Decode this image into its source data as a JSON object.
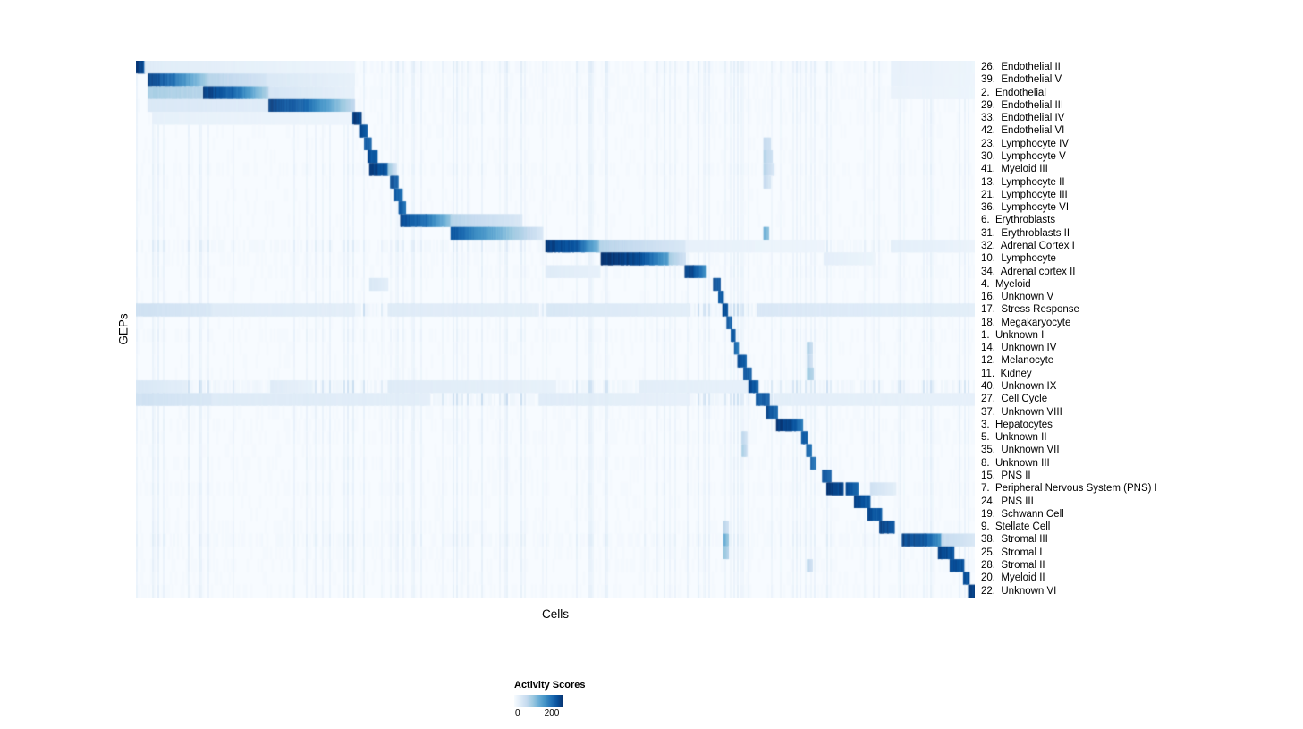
{
  "chart_data": {
    "type": "heatmap",
    "title": "",
    "xlabel": "Cells",
    "ylabel": "GEPs",
    "colorbar": {
      "title": "Activity Scores",
      "min": 0,
      "max": 200
    },
    "colormap_stops": [
      [
        0.0,
        247,
        251,
        255
      ],
      [
        0.125,
        222,
        235,
        247
      ],
      [
        0.25,
        198,
        219,
        239
      ],
      [
        0.375,
        158,
        202,
        225
      ],
      [
        0.5,
        107,
        174,
        214
      ],
      [
        0.625,
        66,
        146,
        198
      ],
      [
        0.75,
        33,
        113,
        181
      ],
      [
        0.875,
        8,
        81,
        156
      ],
      [
        1.0,
        8,
        48,
        107
      ]
    ],
    "rows": [
      {
        "label": "26.  Endothelial II",
        "noise": 0.07,
        "blocks": [
          [
            0.0,
            0.01,
            1.0,
            0.85
          ],
          [
            0.01,
            0.26,
            0.12,
            0.05
          ],
          [
            0.9,
            1.0,
            0.08,
            0.05
          ]
        ]
      },
      {
        "label": "39.  Endothelial V",
        "noise": 0.05,
        "blocks": [
          [
            0.014,
            0.045,
            0.95,
            0.75
          ],
          [
            0.045,
            0.085,
            0.75,
            0.35
          ],
          [
            0.085,
            0.155,
            0.3,
            0.18
          ],
          [
            0.155,
            0.26,
            0.15,
            0.08
          ],
          [
            0.9,
            1.0,
            0.08,
            0.05
          ]
        ]
      },
      {
        "label": "2.  Endothelial",
        "noise": 0.05,
        "blocks": [
          [
            0.014,
            0.08,
            0.35,
            0.3
          ],
          [
            0.08,
            0.115,
            0.95,
            0.8
          ],
          [
            0.115,
            0.158,
            0.8,
            0.3
          ],
          [
            0.158,
            0.26,
            0.18,
            0.08
          ],
          [
            0.9,
            1.0,
            0.07,
            0.05
          ]
        ]
      },
      {
        "label": "29.  Endothelial III",
        "noise": 0.05,
        "blocks": [
          [
            0.014,
            0.158,
            0.15,
            0.12
          ],
          [
            0.158,
            0.2,
            0.95,
            0.8
          ],
          [
            0.2,
            0.26,
            0.8,
            0.25
          ]
        ]
      },
      {
        "label": "33.  Endothelial IV",
        "noise": 0.05,
        "blocks": [
          [
            0.02,
            0.258,
            0.08,
            0.05
          ],
          [
            0.258,
            0.268,
            0.95,
            0.9
          ]
        ]
      },
      {
        "label": "42.  Endothelial VI",
        "noise": 0.04,
        "blocks": [
          [
            0.266,
            0.275,
            0.9,
            0.85
          ]
        ]
      },
      {
        "label": "23.  Lymphocyte IV",
        "noise": 0.04,
        "blocks": [
          [
            0.272,
            0.28,
            0.85,
            0.8
          ],
          [
            0.748,
            0.756,
            0.25,
            0.2
          ]
        ]
      },
      {
        "label": "30.  Lymphocyte V",
        "noise": 0.04,
        "blocks": [
          [
            0.276,
            0.287,
            0.9,
            0.8
          ],
          [
            0.748,
            0.758,
            0.3,
            0.2
          ]
        ]
      },
      {
        "label": "41.  Myeloid III",
        "noise": 0.05,
        "blocks": [
          [
            0.278,
            0.3,
            0.95,
            0.85
          ],
          [
            0.3,
            0.31,
            0.4,
            0.2
          ],
          [
            0.748,
            0.76,
            0.3,
            0.15
          ]
        ]
      },
      {
        "label": "13.  Lymphocyte II",
        "noise": 0.04,
        "blocks": [
          [
            0.303,
            0.312,
            0.9,
            0.8
          ],
          [
            0.748,
            0.756,
            0.25,
            0.15
          ]
        ]
      },
      {
        "label": "21.  Lymphocyte III",
        "noise": 0.04,
        "blocks": [
          [
            0.308,
            0.317,
            0.85,
            0.75
          ]
        ]
      },
      {
        "label": "36.  Lymphocyte VI",
        "noise": 0.04,
        "blocks": [
          [
            0.313,
            0.321,
            0.85,
            0.75
          ]
        ]
      },
      {
        "label": "6.  Erythroblasts",
        "noise": 0.04,
        "blocks": [
          [
            0.315,
            0.345,
            0.9,
            0.75
          ],
          [
            0.345,
            0.375,
            0.75,
            0.4
          ],
          [
            0.375,
            0.46,
            0.3,
            0.15
          ]
        ]
      },
      {
        "label": "31.  Erythroblasts II",
        "noise": 0.04,
        "blocks": [
          [
            0.375,
            0.42,
            0.85,
            0.55
          ],
          [
            0.42,
            0.485,
            0.55,
            0.15
          ],
          [
            0.748,
            0.754,
            0.5,
            0.4
          ]
        ]
      },
      {
        "label": "32.  Adrenal Cortex I",
        "noise": 0.08,
        "blocks": [
          [
            0.488,
            0.525,
            0.95,
            0.85
          ],
          [
            0.525,
            0.552,
            0.85,
            0.45
          ],
          [
            0.552,
            0.655,
            0.3,
            0.15
          ],
          [
            0.655,
            0.82,
            0.08,
            0.05
          ],
          [
            0.9,
            1.0,
            0.1,
            0.06
          ]
        ]
      },
      {
        "label": "10.  Lymphocyte",
        "noise": 0.05,
        "blocks": [
          [
            0.554,
            0.6,
            1.0,
            0.9
          ],
          [
            0.6,
            0.635,
            0.9,
            0.55
          ],
          [
            0.635,
            0.655,
            0.35,
            0.2
          ],
          [
            0.82,
            0.88,
            0.1,
            0.06
          ]
        ]
      },
      {
        "label": "34.  Adrenal cortex II",
        "noise": 0.05,
        "blocks": [
          [
            0.488,
            0.552,
            0.12,
            0.08
          ],
          [
            0.654,
            0.664,
            0.95,
            0.9
          ],
          [
            0.664,
            0.679,
            0.9,
            0.6
          ]
        ]
      },
      {
        "label": "4.  Myeloid",
        "noise": 0.04,
        "blocks": [
          [
            0.278,
            0.3,
            0.15,
            0.1
          ],
          [
            0.688,
            0.696,
            0.9,
            0.85
          ]
        ]
      },
      {
        "label": "16.  Unknown V",
        "noise": 0.04,
        "blocks": [
          [
            0.694,
            0.7,
            0.85,
            0.8
          ]
        ]
      },
      {
        "label": "17.  Stress Response",
        "noise": 0.16,
        "blocks": [
          [
            0.0,
            0.09,
            0.2,
            0.15
          ],
          [
            0.09,
            0.26,
            0.12,
            0.1
          ],
          [
            0.3,
            0.48,
            0.12,
            0.1
          ],
          [
            0.49,
            0.66,
            0.15,
            0.1
          ],
          [
            0.699,
            0.705,
            0.9,
            0.85
          ],
          [
            0.74,
            1.0,
            0.15,
            0.1
          ]
        ]
      },
      {
        "label": "18.  Megakaryocyte",
        "noise": 0.04,
        "blocks": [
          [
            0.704,
            0.71,
            0.85,
            0.8
          ]
        ]
      },
      {
        "label": "1.  Unknown I",
        "noise": 0.05,
        "blocks": [
          [
            0.709,
            0.714,
            0.85,
            0.8
          ]
        ]
      },
      {
        "label": "14.  Unknown IV",
        "noise": 0.04,
        "blocks": [
          [
            0.713,
            0.718,
            0.8,
            0.75
          ],
          [
            0.8,
            0.806,
            0.35,
            0.25
          ]
        ]
      },
      {
        "label": "12.  Melanocyte",
        "noise": 0.04,
        "blocks": [
          [
            0.717,
            0.727,
            0.9,
            0.8
          ],
          [
            0.8,
            0.806,
            0.3,
            0.2
          ]
        ]
      },
      {
        "label": "11.  Kidney",
        "noise": 0.04,
        "blocks": [
          [
            0.724,
            0.733,
            0.9,
            0.8
          ],
          [
            0.8,
            0.807,
            0.4,
            0.3
          ]
        ]
      },
      {
        "label": "40.  Unknown IX",
        "noise": 0.13,
        "blocks": [
          [
            0.0,
            0.06,
            0.15,
            0.1
          ],
          [
            0.16,
            0.21,
            0.12,
            0.08
          ],
          [
            0.3,
            0.5,
            0.12,
            0.08
          ],
          [
            0.6,
            0.73,
            0.1,
            0.08
          ],
          [
            0.73,
            0.741,
            0.9,
            0.8
          ]
        ]
      },
      {
        "label": "27.  Cell Cycle",
        "noise": 0.14,
        "blocks": [
          [
            0.0,
            0.09,
            0.2,
            0.15
          ],
          [
            0.09,
            0.35,
            0.13,
            0.1
          ],
          [
            0.48,
            0.66,
            0.12,
            0.08
          ],
          [
            0.739,
            0.754,
            0.9,
            0.8
          ],
          [
            0.76,
            1.0,
            0.1,
            0.08
          ]
        ]
      },
      {
        "label": "37.  Unknown VIII",
        "noise": 0.05,
        "blocks": [
          [
            0.751,
            0.764,
            0.9,
            0.8
          ]
        ]
      },
      {
        "label": "3.  Hepatocytes",
        "noise": 0.05,
        "blocks": [
          [
            0.763,
            0.78,
            0.95,
            0.9
          ],
          [
            0.78,
            0.794,
            0.9,
            0.7
          ]
        ]
      },
      {
        "label": "5.  Unknown II",
        "noise": 0.05,
        "blocks": [
          [
            0.722,
            0.728,
            0.3,
            0.2
          ],
          [
            0.793,
            0.8,
            0.85,
            0.8
          ]
        ]
      },
      {
        "label": "35.  Unknown VII",
        "noise": 0.04,
        "blocks": [
          [
            0.722,
            0.728,
            0.35,
            0.25
          ],
          [
            0.799,
            0.805,
            0.8,
            0.75
          ]
        ]
      },
      {
        "label": "8.  Unknown III",
        "noise": 0.05,
        "blocks": [
          [
            0.804,
            0.81,
            0.8,
            0.75
          ]
        ]
      },
      {
        "label": "15.  PNS II",
        "noise": 0.04,
        "blocks": [
          [
            0.818,
            0.828,
            0.85,
            0.8
          ]
        ]
      },
      {
        "label": "7.  Peripheral Nervous System (PNS) I",
        "noise": 0.05,
        "blocks": [
          [
            0.823,
            0.843,
            0.98,
            0.9
          ],
          [
            0.846,
            0.86,
            0.9,
            0.8
          ],
          [
            0.875,
            0.905,
            0.2,
            0.1
          ]
        ]
      },
      {
        "label": "24.  PNS III",
        "noise": 0.04,
        "blocks": [
          [
            0.856,
            0.875,
            0.92,
            0.82
          ]
        ]
      },
      {
        "label": "19.  Schwann Cell",
        "noise": 0.04,
        "blocks": [
          [
            0.872,
            0.889,
            0.92,
            0.82
          ]
        ]
      },
      {
        "label": "9.  Stellate Cell",
        "noise": 0.05,
        "blocks": [
          [
            0.7,
            0.706,
            0.3,
            0.2
          ],
          [
            0.886,
            0.904,
            0.95,
            0.85
          ]
        ]
      },
      {
        "label": "38.  Stromal III",
        "noise": 0.07,
        "blocks": [
          [
            0.7,
            0.706,
            0.5,
            0.4
          ],
          [
            0.913,
            0.94,
            0.92,
            0.85
          ],
          [
            0.94,
            0.96,
            0.85,
            0.6
          ],
          [
            0.96,
            1.0,
            0.25,
            0.15
          ]
        ]
      },
      {
        "label": "25.  Stromal I",
        "noise": 0.05,
        "blocks": [
          [
            0.7,
            0.706,
            0.4,
            0.3
          ],
          [
            0.956,
            0.975,
            0.92,
            0.85
          ]
        ]
      },
      {
        "label": "28.  Stromal II",
        "noise": 0.05,
        "blocks": [
          [
            0.8,
            0.806,
            0.3,
            0.2
          ],
          [
            0.97,
            0.987,
            0.92,
            0.85
          ]
        ]
      },
      {
        "label": "20.  Myeloid II",
        "noise": 0.04,
        "blocks": [
          [
            0.986,
            0.993,
            0.9,
            0.85
          ]
        ]
      },
      {
        "label": "22.  Unknown VI",
        "noise": 0.05,
        "blocks": [
          [
            0.992,
            1.0,
            0.95,
            0.9
          ]
        ]
      }
    ]
  }
}
